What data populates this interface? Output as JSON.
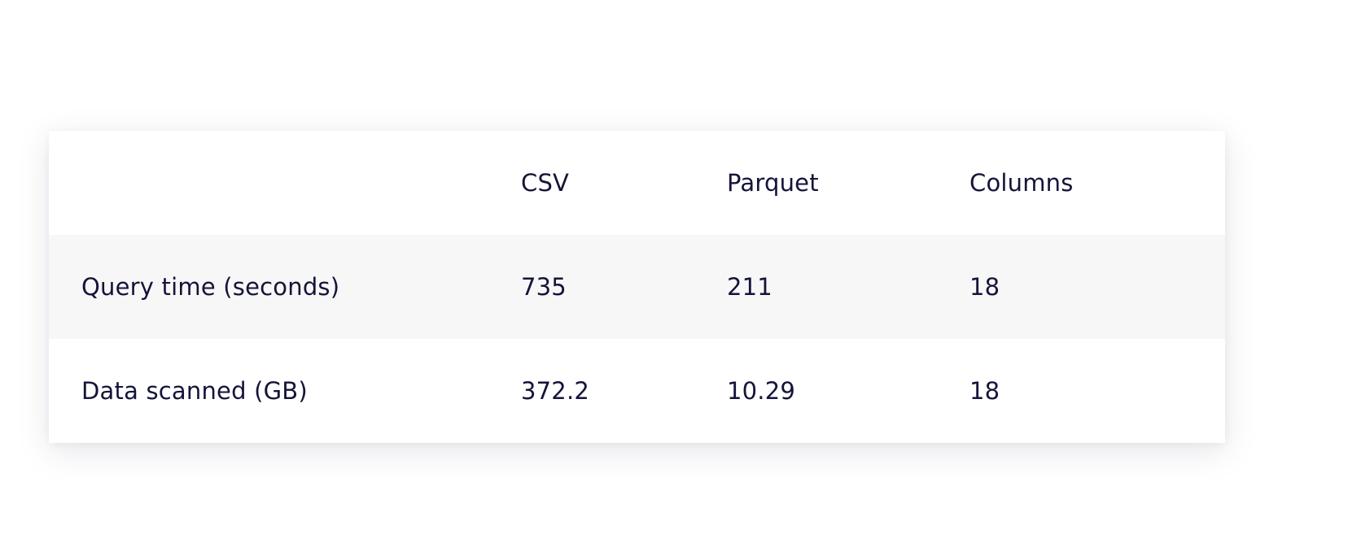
{
  "table": {
    "headers": [
      "",
      "CSV",
      "Parquet",
      "Columns"
    ],
    "rows": [
      [
        "Query time (seconds)",
        "735",
        "211",
        "18"
      ],
      [
        "Data scanned (GB)",
        "372.2",
        "10.29",
        "18"
      ]
    ]
  }
}
